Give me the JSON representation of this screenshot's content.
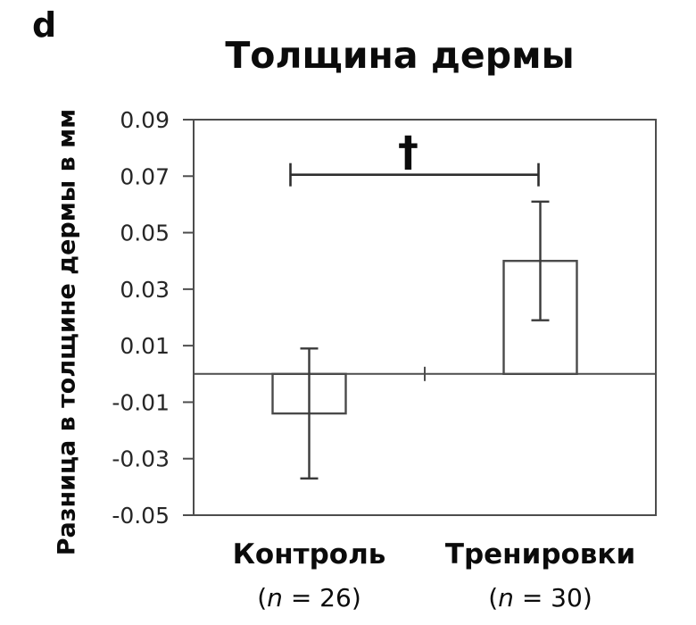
{
  "panel_label": "d",
  "colors": {
    "background": "#ffffff",
    "frame_line": "#4d4d4d",
    "bar_edge": "#4a4a4a",
    "bar_fill": "#ffffff",
    "error_line": "#3a3a3a",
    "bracket_line": "#2e2e2e",
    "title_text": "#0b0b0b",
    "tick_text": "#262626",
    "category_text": "#0b0b0b"
  },
  "chart_data": {
    "type": "bar",
    "title": "Толщина дермы",
    "ylabel": "Разница в толщине дермы в мм",
    "xlabel": "",
    "categories": [
      "Контроль",
      "Тренировки"
    ],
    "category_sublabels": [
      [
        {
          "text": "(",
          "italic": false
        },
        {
          "text": "n",
          "italic": true
        },
        {
          "text": " = 26)",
          "italic": false
        }
      ],
      [
        {
          "text": "(",
          "italic": false
        },
        {
          "text": "n",
          "italic": true
        },
        {
          "text": " = 30)",
          "italic": false
        }
      ]
    ],
    "values": [
      -0.014,
      0.04
    ],
    "errors": [
      0.023,
      0.021
    ],
    "error_ranges": [
      [
        -0.037,
        0.009
      ],
      [
        0.019,
        0.061
      ]
    ],
    "ylim": [
      -0.05,
      0.09
    ],
    "yticks": [
      0.09,
      0.07,
      0.05,
      0.03,
      0.01,
      -0.01,
      -0.03,
      -0.05
    ],
    "ytick_labels": [
      "0.09",
      "0.07",
      "0.05",
      "0.03",
      "0.01",
      "-0.01",
      "-0.03",
      "-0.05"
    ],
    "grid": false,
    "legend": null,
    "significance": {
      "symbol": "†",
      "level": 0.0705,
      "between": [
        "Контроль",
        "Тренировки"
      ]
    }
  }
}
